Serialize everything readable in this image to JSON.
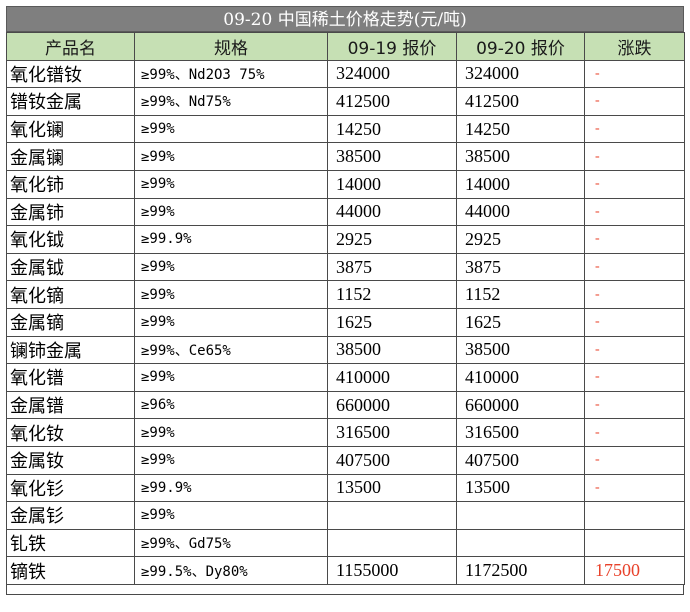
{
  "title": "09-20 中国稀土价格走势(元/吨)",
  "headers": [
    "产品名",
    "规格",
    "09-19 报价",
    "09-20 报价",
    "涨跌"
  ],
  "rows": [
    {
      "name": "氧化镨钕",
      "spec": "≥99%、Nd2O3 75%",
      "prev": "324000",
      "curr": "324000",
      "change": "-"
    },
    {
      "name": "镨钕金属",
      "spec": "≥99%、Nd75%",
      "prev": "412500",
      "curr": "412500",
      "change": "-"
    },
    {
      "name": "氧化镧",
      "spec": "≥99%",
      "prev": "14250",
      "curr": "14250",
      "change": "-"
    },
    {
      "name": "金属镧",
      "spec": "≥99%",
      "prev": "38500",
      "curr": "38500",
      "change": "-"
    },
    {
      "name": "氧化铈",
      "spec": "≥99%",
      "prev": "14000",
      "curr": "14000",
      "change": "-"
    },
    {
      "name": "金属铈",
      "spec": "≥99%",
      "prev": "44000",
      "curr": "44000",
      "change": "-"
    },
    {
      "name": "氧化钺",
      "spec": "≥99.9%",
      "prev": "2925",
      "curr": "2925",
      "change": "-"
    },
    {
      "name": "金属钺",
      "spec": "≥99%",
      "prev": "3875",
      "curr": "3875",
      "change": "-"
    },
    {
      "name": "氧化镝",
      "spec": "≥99%",
      "prev": "1152",
      "curr": "1152",
      "change": "-"
    },
    {
      "name": "金属镝",
      "spec": "≥99%",
      "prev": "1625",
      "curr": "1625",
      "change": "-"
    },
    {
      "name": "镧铈金属",
      "spec": "≥99%、Ce65%",
      "prev": "38500",
      "curr": "38500",
      "change": "-"
    },
    {
      "name": "氧化镨",
      "spec": "≥99%",
      "prev": "410000",
      "curr": "410000",
      "change": "-"
    },
    {
      "name": "金属镨",
      "spec": "≥96%",
      "prev": "660000",
      "curr": "660000",
      "change": "-"
    },
    {
      "name": "氧化钕",
      "spec": "≥99%",
      "prev": "316500",
      "curr": "316500",
      "change": "-"
    },
    {
      "name": "金属钕",
      "spec": "≥99%",
      "prev": "407500",
      "curr": "407500",
      "change": "-"
    },
    {
      "name": "氧化钐",
      "spec": "≥99.9%",
      "prev": "13500",
      "curr": "13500",
      "change": "-"
    },
    {
      "name": "金属钐",
      "spec": "≥99%",
      "prev": "",
      "curr": "",
      "change": ""
    },
    {
      "name": "钆铁",
      "spec": "≥99%、Gd75%",
      "prev": "",
      "curr": "",
      "change": ""
    },
    {
      "name": "镝铁",
      "spec": "≥99.5%、Dy80%",
      "prev": "1155000",
      "curr": "1172500",
      "change": "17500"
    }
  ],
  "colors": {
    "header_bg": "#c6e0b4",
    "title_bg": "#7f7f7f",
    "change_text": "#e8412a"
  }
}
